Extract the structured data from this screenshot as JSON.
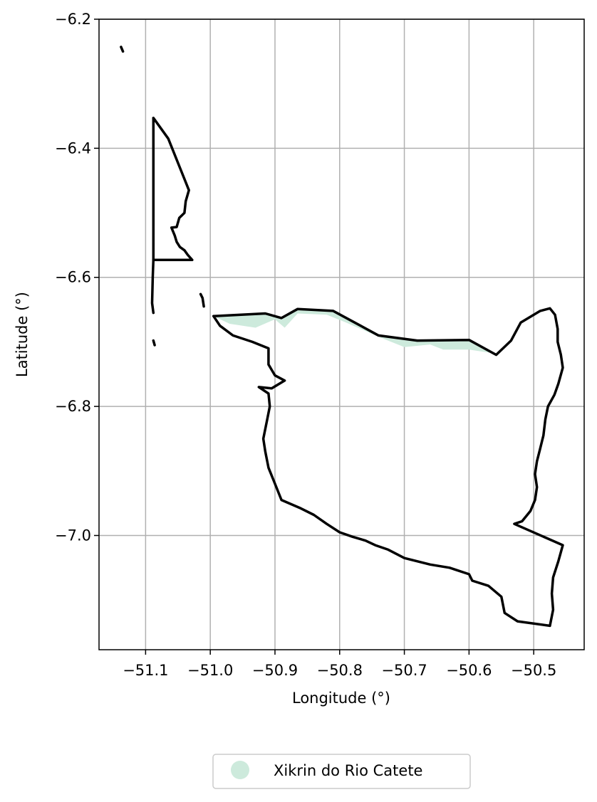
{
  "chart_data": {
    "type": "map",
    "xlabel": "Longitude (°)",
    "ylabel": "Latitude (°)",
    "xlim": [
      -51.172,
      -50.422
    ],
    "ylim": [
      -7.177,
      -6.2
    ],
    "xticks": [
      -51.1,
      -51.0,
      -50.9,
      -50.8,
      -50.7,
      -50.6,
      -50.5
    ],
    "xtick_labels": [
      "−51.1",
      "−51.0",
      "−50.9",
      "−50.8",
      "−50.7",
      "−50.6",
      "−50.5"
    ],
    "yticks": [
      -6.2,
      -6.4,
      -6.6,
      -6.8,
      -7.0
    ],
    "ytick_labels": [
      "−6.2",
      "−6.4",
      "−6.6",
      "−6.8",
      "−7.0"
    ],
    "grid": true,
    "legend": {
      "placement": "bottom-center",
      "entries": [
        {
          "label": "Xikrin do Rio Catete",
          "color": "#cdeadc"
        }
      ]
    },
    "fill_color": "#cdeadc",
    "boundary_color": "#000000",
    "territory_fill": [
      [
        -50.995,
        -6.66
      ],
      [
        -50.97,
        -6.672
      ],
      [
        -50.93,
        -6.678
      ],
      [
        -50.9,
        -6.665
      ],
      [
        -50.885,
        -6.678
      ],
      [
        -50.865,
        -6.656
      ],
      [
        -50.82,
        -6.658
      ],
      [
        -50.79,
        -6.67
      ],
      [
        -50.74,
        -6.692
      ],
      [
        -50.7,
        -6.708
      ],
      [
        -50.66,
        -6.704
      ],
      [
        -50.64,
        -6.712
      ],
      [
        -50.6,
        -6.712
      ],
      [
        -50.56,
        -6.718
      ],
      [
        -50.6,
        -6.697
      ],
      [
        -50.68,
        -6.698
      ],
      [
        -50.74,
        -6.69
      ],
      [
        -50.81,
        -6.652
      ],
      [
        -50.865,
        -6.649
      ],
      [
        -50.89,
        -6.663
      ],
      [
        -50.915,
        -6.655
      ],
      [
        -50.995,
        -6.66
      ]
    ],
    "boundaries": [
      [
        [
          -51.088,
          -6.353
        ],
        [
          -51.065,
          -6.385
        ],
        [
          -51.033,
          -6.465
        ],
        [
          -51.038,
          -6.482
        ],
        [
          -51.04,
          -6.5
        ],
        [
          -51.048,
          -6.508
        ],
        [
          -51.052,
          -6.522
        ],
        [
          -51.06,
          -6.523
        ],
        [
          -51.055,
          -6.535
        ],
        [
          -51.052,
          -6.545
        ],
        [
          -51.047,
          -6.553
        ],
        [
          -51.04,
          -6.558
        ],
        [
          -51.035,
          -6.565
        ],
        [
          -51.028,
          -6.573
        ],
        [
          -51.088,
          -6.573
        ],
        [
          -51.088,
          -6.353
        ]
      ],
      [
        [
          -51.088,
          -6.573
        ],
        [
          -51.089,
          -6.6
        ],
        [
          -51.09,
          -6.64
        ],
        [
          -51.088,
          -6.655
        ]
      ],
      [
        [
          -50.995,
          -6.66
        ],
        [
          -50.915,
          -6.656
        ],
        [
          -50.89,
          -6.663
        ],
        [
          -50.865,
          -6.649
        ],
        [
          -50.81,
          -6.652
        ],
        [
          -50.74,
          -6.69
        ],
        [
          -50.68,
          -6.698
        ],
        [
          -50.6,
          -6.697
        ],
        [
          -50.558,
          -6.72
        ],
        [
          -50.535,
          -6.698
        ],
        [
          -50.52,
          -6.67
        ],
        [
          -50.49,
          -6.652
        ],
        [
          -50.475,
          -6.648
        ],
        [
          -50.467,
          -6.658
        ],
        [
          -50.463,
          -6.68
        ],
        [
          -50.463,
          -6.7
        ],
        [
          -50.458,
          -6.72
        ],
        [
          -50.455,
          -6.74
        ],
        [
          -50.462,
          -6.765
        ],
        [
          -50.468,
          -6.782
        ],
        [
          -50.478,
          -6.8
        ],
        [
          -50.482,
          -6.82
        ],
        [
          -50.485,
          -6.845
        ],
        [
          -50.49,
          -6.865
        ],
        [
          -50.495,
          -6.885
        ],
        [
          -50.498,
          -6.905
        ],
        [
          -50.495,
          -6.925
        ],
        [
          -50.498,
          -6.945
        ],
        [
          -50.505,
          -6.962
        ],
        [
          -50.518,
          -6.978
        ],
        [
          -50.53,
          -6.982
        ],
        [
          -50.455,
          -7.015
        ],
        [
          -50.462,
          -7.04
        ],
        [
          -50.47,
          -7.065
        ],
        [
          -50.472,
          -7.09
        ],
        [
          -50.47,
          -7.115
        ],
        [
          -50.475,
          -7.14
        ],
        [
          -50.525,
          -7.133
        ],
        [
          -50.545,
          -7.12
        ],
        [
          -50.55,
          -7.095
        ],
        [
          -50.57,
          -7.078
        ],
        [
          -50.595,
          -7.07
        ],
        [
          -50.6,
          -7.06
        ],
        [
          -50.63,
          -7.05
        ],
        [
          -50.66,
          -7.045
        ],
        [
          -50.7,
          -7.035
        ],
        [
          -50.725,
          -7.022
        ],
        [
          -50.745,
          -7.015
        ],
        [
          -50.76,
          -7.008
        ],
        [
          -50.78,
          -7.002
        ],
        [
          -50.8,
          -6.995
        ],
        [
          -50.82,
          -6.982
        ],
        [
          -50.84,
          -6.968
        ],
        [
          -50.86,
          -6.958
        ],
        [
          -50.89,
          -6.945
        ],
        [
          -50.9,
          -6.92
        ],
        [
          -50.91,
          -6.895
        ],
        [
          -50.915,
          -6.87
        ],
        [
          -50.918,
          -6.85
        ],
        [
          -50.912,
          -6.82
        ],
        [
          -50.908,
          -6.8
        ],
        [
          -50.91,
          -6.78
        ],
        [
          -50.925,
          -6.77
        ],
        [
          -50.905,
          -6.772
        ],
        [
          -50.885,
          -6.76
        ],
        [
          -50.9,
          -6.752
        ],
        [
          -50.91,
          -6.735
        ],
        [
          -50.91,
          -6.71
        ],
        [
          -50.935,
          -6.7
        ],
        [
          -50.965,
          -6.69
        ],
        [
          -50.985,
          -6.675
        ],
        [
          -50.995,
          -6.66
        ]
      ],
      [
        [
          -51.015,
          -6.626
        ],
        [
          -51.012,
          -6.632
        ],
        [
          -51.01,
          -6.645
        ]
      ],
      [
        [
          -51.138,
          -6.243
        ],
        [
          -51.135,
          -6.25
        ]
      ],
      [
        [
          -51.088,
          -6.698
        ],
        [
          -51.086,
          -6.705
        ]
      ]
    ]
  }
}
